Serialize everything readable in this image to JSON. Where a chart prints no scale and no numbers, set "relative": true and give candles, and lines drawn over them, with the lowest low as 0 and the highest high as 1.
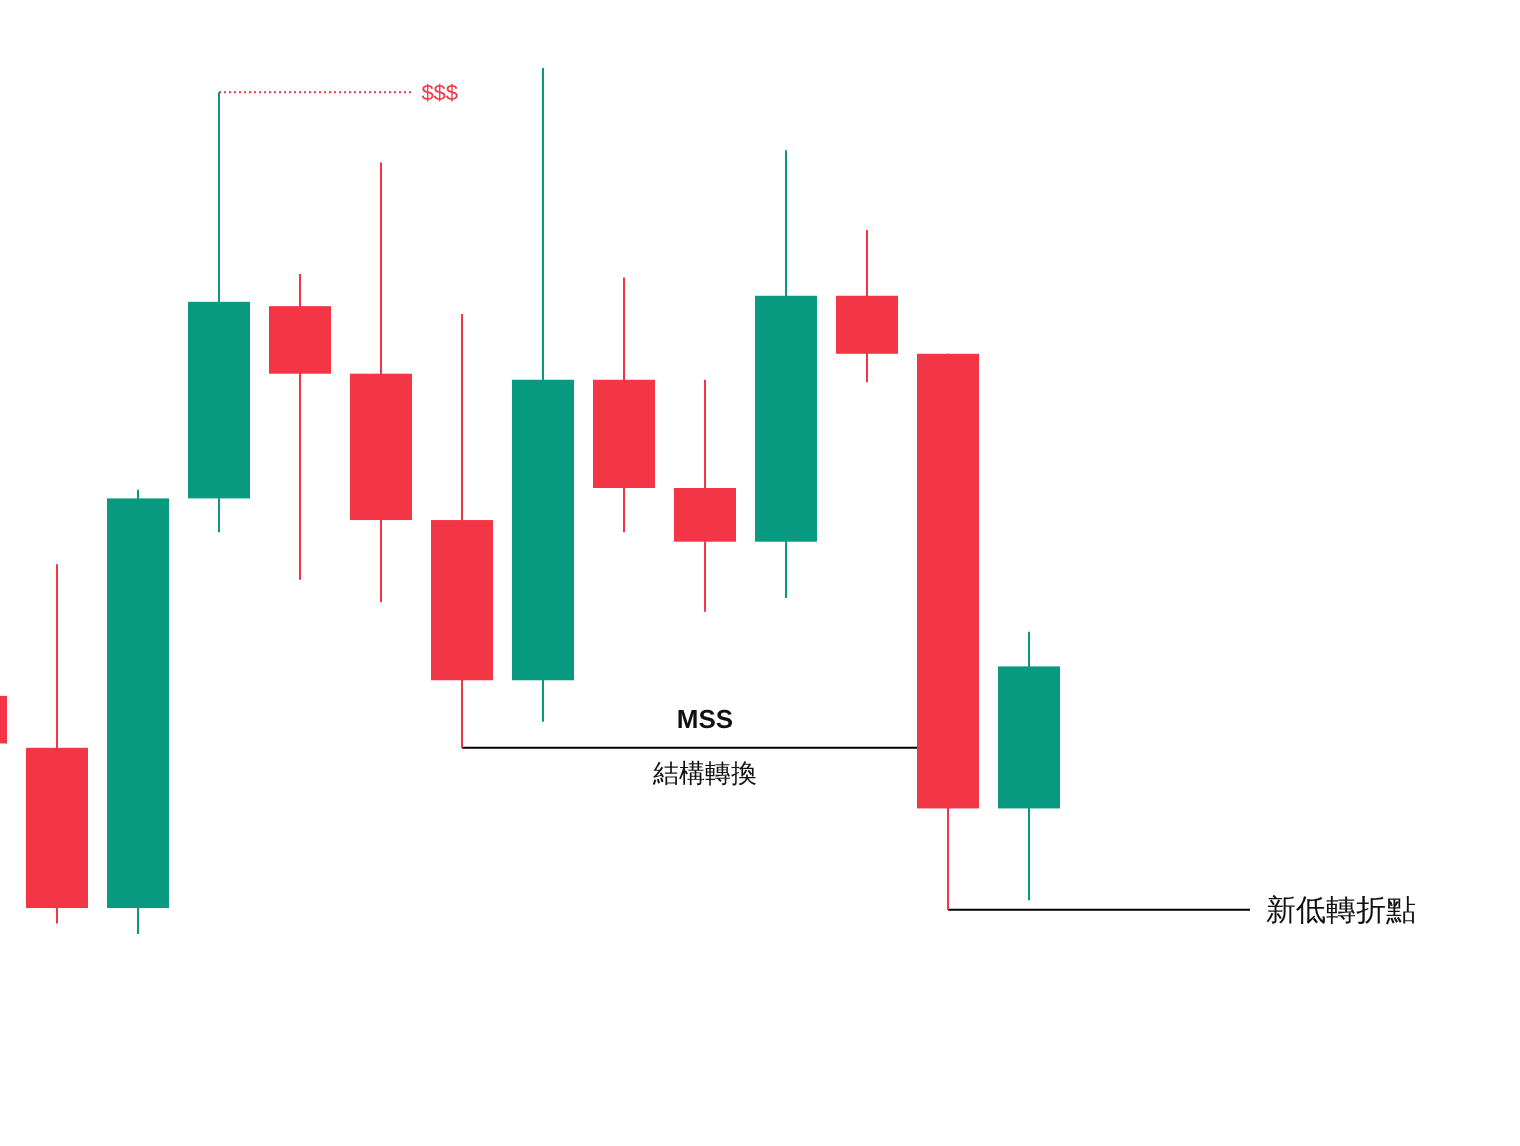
{
  "chart_data": {
    "type": "candlestick",
    "relative": true,
    "categories": [
      null,
      null,
      null,
      null,
      null,
      null,
      null,
      null,
      null,
      null,
      null,
      null,
      null,
      null
    ],
    "ohlc": [
      [
        0.275,
        0.275,
        0.22,
        0.22
      ],
      [
        0.215,
        0.427,
        0.012,
        0.03
      ],
      [
        0.03,
        0.513,
        0.0,
        0.503
      ],
      [
        0.503,
        0.972,
        0.464,
        0.73
      ],
      [
        0.725,
        0.762,
        0.409,
        0.647
      ],
      [
        0.647,
        0.891,
        0.383,
        0.478
      ],
      [
        0.478,
        0.716,
        0.215,
        0.293
      ],
      [
        0.293,
        1.0,
        0.245,
        0.64
      ],
      [
        0.64,
        0.758,
        0.464,
        0.515
      ],
      [
        0.515,
        0.64,
        0.372,
        0.453
      ],
      [
        0.453,
        0.905,
        0.388,
        0.737
      ],
      [
        0.737,
        0.813,
        0.637,
        0.67
      ],
      [
        0.67,
        0.67,
        0.028,
        0.145
      ],
      [
        0.145,
        0.349,
        0.039,
        0.309
      ]
    ],
    "colors": [
      "#f23645",
      "#f23645",
      "#089981",
      "#089981",
      "#f23645",
      "#f23645",
      "#f23645",
      "#089981",
      "#f23645",
      "#f23645",
      "#089981",
      "#f23645",
      "#f23645",
      "#089981"
    ],
    "ref_lines": [
      {
        "axis": "y",
        "value": 0.972,
        "label": "$$$",
        "color": "#f23645",
        "line_style": "dotted"
      },
      {
        "axis": "y",
        "value": 0.215,
        "label": "MSS",
        "color": "#000000",
        "line_style": "solid"
      },
      {
        "axis": "y",
        "value": 0.028,
        "label": "新低轉折點",
        "color": "#000000",
        "line_style": "solid"
      }
    ],
    "annotations": [
      "結構轉換"
    ]
  }
}
